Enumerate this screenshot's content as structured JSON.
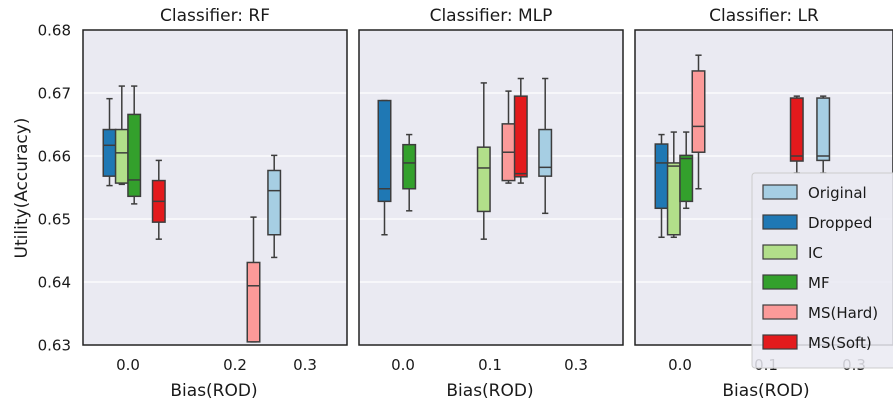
{
  "chart_data": {
    "type": "box",
    "ylabel": "Utility(Accuracy)",
    "ylim": [
      0.63,
      0.68
    ],
    "yticks": [
      "0.63",
      "0.64",
      "0.65",
      "0.66",
      "0.67",
      "0.68"
    ],
    "grid": true,
    "legend_placement": "right of last panel",
    "legend": [
      {
        "name": "Original",
        "color": "#a6cee3"
      },
      {
        "name": "Dropped",
        "color": "#1f78b4"
      },
      {
        "name": "IC",
        "color": "#b2df8a"
      },
      {
        "name": "MF",
        "color": "#33a02c"
      },
      {
        "name": "MS(Hard)",
        "color": "#fb9a99"
      },
      {
        "name": "MS(Soft)",
        "color": "#e31a1c"
      }
    ],
    "panels": [
      {
        "title": "Classifier: RF",
        "xlabel": "Bias(ROD)",
        "xticks": [
          "0.0",
          "0.2",
          "0.3"
        ],
        "boxes": [
          {
            "series": "Dropped",
            "x": "0.0",
            "min": 0.6553,
            "q1": 0.6568,
            "median": 0.6617,
            "q3": 0.6642,
            "max": 0.6691
          },
          {
            "series": "IC",
            "x": "0.0",
            "min": 0.6555,
            "q1": 0.6557,
            "median": 0.6605,
            "q3": 0.6642,
            "max": 0.6711
          },
          {
            "series": "MF",
            "x": "0.0",
            "min": 0.6524,
            "q1": 0.6536,
            "median": 0.6562,
            "q3": 0.6666,
            "max": 0.6711
          },
          {
            "series": "MS(Soft)",
            "x": "0.0",
            "min": 0.6468,
            "q1": 0.6495,
            "median": 0.6528,
            "q3": 0.6561,
            "max": 0.6593
          },
          {
            "series": "MS(Hard)",
            "x": "0.2",
            "min": 0.6305,
            "q1": 0.6305,
            "median": 0.6394,
            "q3": 0.6431,
            "max": 0.6503
          },
          {
            "series": "Original",
            "x": "0.3",
            "min": 0.6439,
            "q1": 0.6475,
            "median": 0.6545,
            "q3": 0.6577,
            "max": 0.6601
          }
        ]
      },
      {
        "title": "Classifier: MLP",
        "xlabel": "Bias(ROD)",
        "xticks": [
          "0.0",
          "0.1",
          "0.3"
        ],
        "boxes": [
          {
            "series": "Dropped",
            "x": "0.0",
            "min": 0.6475,
            "q1": 0.6528,
            "median": 0.6548,
            "q3": 0.6688,
            "max": 0.6688
          },
          {
            "series": "MF",
            "x": "0.0",
            "min": 0.6513,
            "q1": 0.6548,
            "median": 0.6589,
            "q3": 0.6618,
            "max": 0.6634
          },
          {
            "series": "IC",
            "x": "0.1",
            "min": 0.6468,
            "q1": 0.6512,
            "median": 0.6581,
            "q3": 0.6614,
            "max": 0.6716
          },
          {
            "series": "MS(Hard)",
            "x": "0.1",
            "min": 0.6557,
            "q1": 0.6561,
            "median": 0.6606,
            "q3": 0.6651,
            "max": 0.6703
          },
          {
            "series": "MS(Soft)",
            "x": "0.1",
            "min": 0.6557,
            "q1": 0.6567,
            "median": 0.6572,
            "q3": 0.6695,
            "max": 0.6723
          },
          {
            "series": "Original",
            "x": "0.3",
            "min": 0.6509,
            "q1": 0.6568,
            "median": 0.6582,
            "q3": 0.6642,
            "max": 0.6723
          }
        ]
      },
      {
        "title": "Classifier: LR",
        "xlabel": "Bias(ROD)",
        "xticks": [
          "0.0",
          "0.1",
          "0.3"
        ],
        "boxes": [
          {
            "series": "Dropped",
            "x": "0.0",
            "min": 0.6471,
            "q1": 0.6517,
            "median": 0.6589,
            "q3": 0.6619,
            "max": 0.6634
          },
          {
            "series": "IC",
            "x": "0.0",
            "min": 0.6471,
            "q1": 0.6475,
            "median": 0.6584,
            "q3": 0.6589,
            "max": 0.6638
          },
          {
            "series": "MF",
            "x": "0.0",
            "min": 0.6517,
            "q1": 0.6528,
            "median": 0.6596,
            "q3": 0.6601,
            "max": 0.6638
          },
          {
            "series": "MS(Hard)",
            "x": "0.0",
            "min": 0.6548,
            "q1": 0.6606,
            "median": 0.6647,
            "q3": 0.6735,
            "max": 0.676
          },
          {
            "series": "MS(Soft)",
            "x": "0.1",
            "min": 0.6573,
            "q1": 0.6592,
            "median": 0.66,
            "q3": 0.6692,
            "max": 0.6695
          },
          {
            "series": "Original",
            "x": "0.3",
            "min": 0.6573,
            "q1": 0.6593,
            "median": 0.66,
            "q3": 0.6692,
            "max": 0.6695
          }
        ]
      }
    ]
  }
}
